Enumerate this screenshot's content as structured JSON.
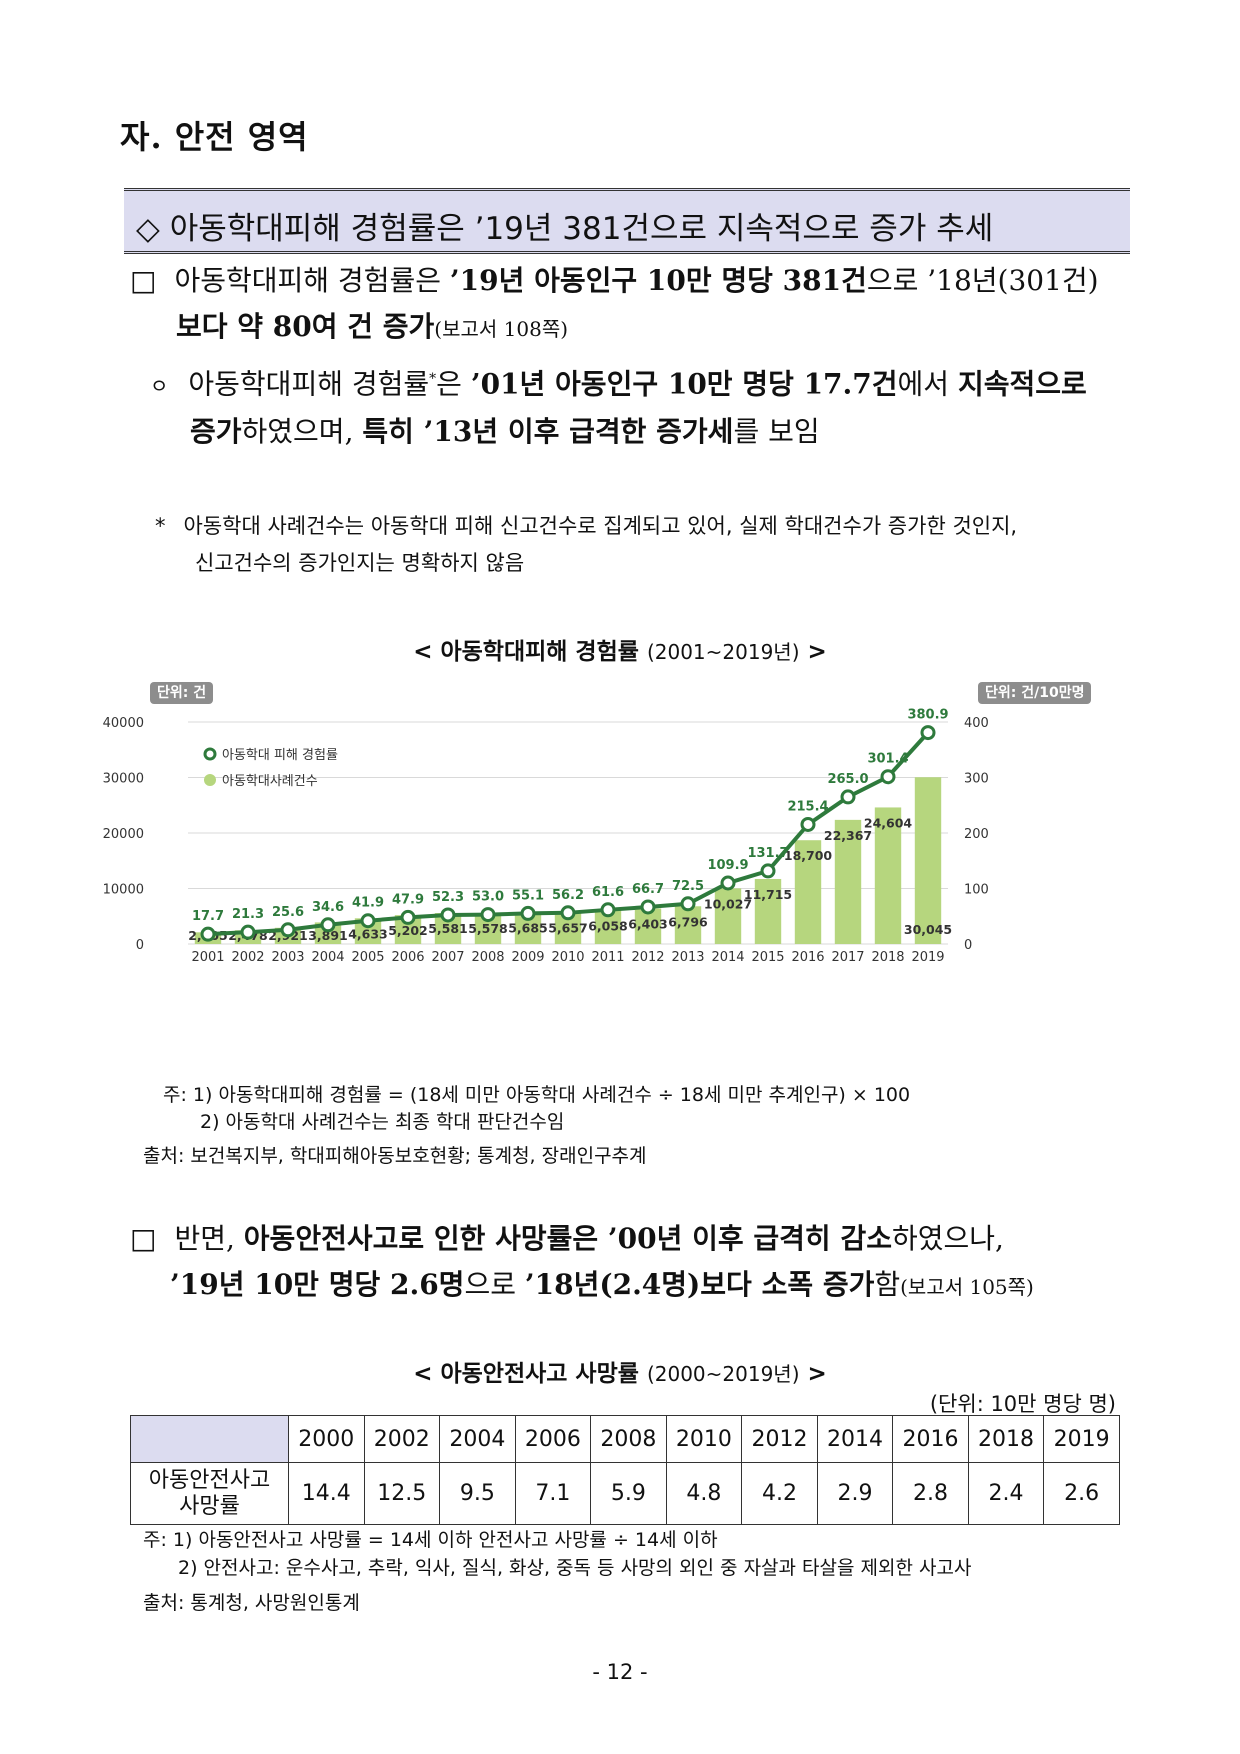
{
  "section_title": "자. 안전 영역",
  "headline": "◇ 아동학대피해 경험률은 ’19년 381건으로 지속적으로 증가 추세",
  "para1": {
    "bullet": "□",
    "line1_a": "아동학대피해 경험률은 ",
    "line1_b": "’19년 아동인구 10만 명당 381건",
    "line1_c": "으로 ’18년(301건)",
    "line2_a": "보다 약 80여 건 증가",
    "line2_b": "(보고서 108쪽)"
  },
  "para2": {
    "bullet": "ㅇ",
    "line1_a": "아동학대피해 경험률",
    "line1_sup": "*",
    "line1_b": "은 ",
    "line1_c": "’01년 아동인구 10만 명당 17.7건",
    "line1_d": "에서 ",
    "line1_e": "지속적으로",
    "line2_a": "증가",
    "line2_b": "하였으며, ",
    "line2_c": "특히 ’13년 이후 급격한 증가세",
    "line2_d": "를 보임"
  },
  "para3": {
    "bullet": "*",
    "line1": "아동학대 사례건수는 아동학대 피해 신고건수로 집계되고 있어, 실제 학대건수가 증가한 것인지,",
    "line2": "신고건수의 증가인지는 명확하지 않음"
  },
  "chart_title": {
    "main": "< 아동학대피해 경험률",
    "range": "(2001~2019년)",
    "close": ">"
  },
  "chart_data": {
    "type": "bar",
    "categories": [
      "2001",
      "2002",
      "2003",
      "2004",
      "2005",
      "2006",
      "2007",
      "2008",
      "2009",
      "2010",
      "2011",
      "2012",
      "2013",
      "2014",
      "2015",
      "2016",
      "2017",
      "2018",
      "2019"
    ],
    "series": [
      {
        "name": "아동학대사례건수",
        "kind": "bar",
        "axis": "left",
        "values": [
          2105,
          2478,
          2921,
          3891,
          4633,
          5202,
          5581,
          5578,
          5685,
          5657,
          6058,
          6403,
          6796,
          10027,
          11715,
          18700,
          22367,
          24604,
          30045
        ],
        "labels": [
          "2,105",
          "2,478",
          "2,921",
          "3,891",
          "4,633",
          "5,202",
          "5,581",
          "5,578",
          "5,685",
          "5,657",
          "6,058",
          "6,403",
          "6,796",
          "10,027",
          "11,715",
          "18,700",
          "22,367",
          "24,604",
          "30,045"
        ]
      },
      {
        "name": "아동학대 피해 경험률",
        "kind": "line",
        "axis": "right",
        "values": [
          17.7,
          21.3,
          25.6,
          34.6,
          41.9,
          47.9,
          52.3,
          53.0,
          55.1,
          56.2,
          61.6,
          66.7,
          72.5,
          109.9,
          131.7,
          215.4,
          265.0,
          301.4,
          380.9
        ],
        "labels": [
          "17.7",
          "21.3",
          "25.6",
          "34.6",
          "41.9",
          "47.9",
          "52.3",
          "53.0",
          "55.1",
          "56.2",
          "61.6",
          "66.7",
          "72.5",
          "109.9",
          "131.7",
          "215.4",
          "265.0",
          "301.4",
          "380.9"
        ]
      }
    ],
    "left_axis": {
      "unit_label": "단위: 건",
      "ticks": [
        "0",
        "10000",
        "20000",
        "30000",
        "40000"
      ],
      "range": [
        0,
        40000
      ]
    },
    "right_axis": {
      "unit_label": "단위: 건/10만명",
      "ticks": [
        "0",
        "100",
        "200",
        "300",
        "400"
      ],
      "range": [
        0,
        400
      ]
    },
    "legend_position": "top-left",
    "colors": {
      "bar": "#b6d67e",
      "line": "#2e7a3c"
    }
  },
  "chart_notes": {
    "n1": "주: 1) 아동학대피해 경험률 = (18세 미만 아동학대 사례건수 ÷ 18세 미만 추계인구) × 100",
    "n2": "2) 아동학대 사례건수는 최종 학대 판단건수임",
    "source": "출처: 보건복지부, 학대피해아동보호현황; 통계청, 장래인구추계"
  },
  "para4": {
    "bullet": "□",
    "line1_a": "반면, ",
    "line1_b": "아동안전사고로 인한 사망률은 ’00년 이후 급격히 감소",
    "line1_c": "하였으나,",
    "line2_a": "’19년 10만 명당 2.6명",
    "line2_b": "으로 ",
    "line2_c": "’18년(2.4명)보다 소폭 증가",
    "line2_d": "함",
    "line2_e": "(보고서 105쪽)"
  },
  "table_title": {
    "main": "< 아동안전사고 사망률",
    "range": "(2000~2019년)",
    "close": ">"
  },
  "table_unit": "(단위: 10만 명당 명)",
  "table": {
    "years": [
      "2000",
      "2002",
      "2004",
      "2006",
      "2008",
      "2010",
      "2012",
      "2014",
      "2016",
      "2018",
      "2019"
    ],
    "row_label_1": "아동안전사고",
    "row_label_2": "사망률",
    "values": [
      "14.4",
      "12.5",
      "9.5",
      "7.1",
      "5.9",
      "4.8",
      "4.2",
      "2.9",
      "2.8",
      "2.4",
      "2.6"
    ]
  },
  "table_notes": {
    "n1": "주: 1) 아동안전사고 사망률 = 14세 이하 안전사고 사망률 ÷ 14세 이하",
    "n2": "2) 안전사고: 운수사고, 추락, 익사, 질식, 화상, 중독 등 사망의 외인 중 자살과 타살을 제외한 사고사",
    "source": "출처: 통계청, 사망원인통계"
  },
  "page_number": "- 12 -"
}
